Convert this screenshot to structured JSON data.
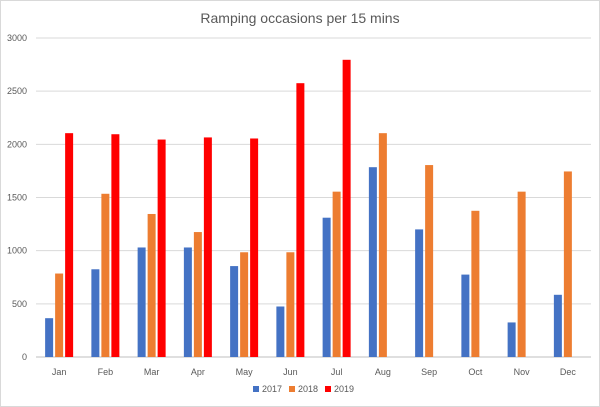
{
  "chart_data": {
    "type": "bar",
    "title": "Ramping occasions per 15 mins",
    "xlabel": "",
    "ylabel": "",
    "categories": [
      "Jan",
      "Feb",
      "Mar",
      "Apr",
      "May",
      "Jun",
      "Jul",
      "Aug",
      "Sep",
      "Oct",
      "Nov",
      "Dec"
    ],
    "ylim": [
      0,
      3000
    ],
    "yticks": [
      0,
      500,
      1000,
      1500,
      2000,
      2500,
      3000
    ],
    "grid": true,
    "legend_position": "bottom",
    "series": [
      {
        "name": "2017",
        "color": "#4472c4",
        "values": [
          365,
          825,
          1030,
          1030,
          855,
          475,
          1310,
          1785,
          1200,
          775,
          325,
          585
        ]
      },
      {
        "name": "2018",
        "color": "#ed7d31",
        "values": [
          785,
          1535,
          1345,
          1175,
          985,
          985,
          1555,
          2105,
          1805,
          1375,
          1555,
          1745
        ]
      },
      {
        "name": "2019",
        "color": "#ff0000",
        "values": [
          2105,
          2095,
          2045,
          2065,
          2055,
          2575,
          2795,
          null,
          null,
          null,
          null,
          null
        ]
      }
    ]
  }
}
